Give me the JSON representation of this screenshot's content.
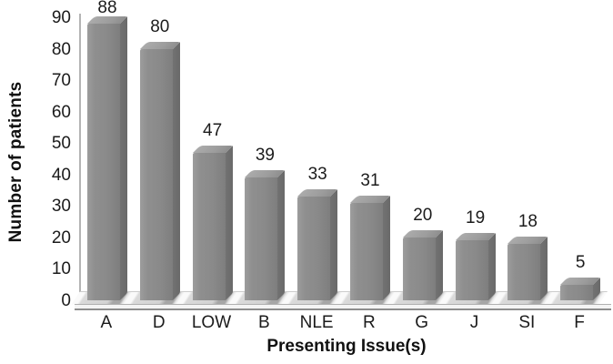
{
  "chart_data": {
    "type": "bar",
    "title": "",
    "xlabel": "Presenting Issue(s)",
    "ylabel": "Number of patients",
    "categories": [
      "A",
      "D",
      "LOW",
      "B",
      "NLE",
      "R",
      "G",
      "J",
      "SI",
      "F"
    ],
    "values": [
      88,
      80,
      47,
      39,
      33,
      31,
      20,
      19,
      18,
      5
    ],
    "data_labels_shown": true,
    "ylim": [
      0,
      90
    ],
    "yticks": [
      0,
      10,
      20,
      30,
      40,
      50,
      60,
      70,
      80,
      90
    ],
    "grid": false,
    "legend": null,
    "effect": "3d-beveled-bars",
    "colors": {
      "bar_face": "#8a8a8a",
      "bar_top": "#a5a5a5",
      "bar_side": "#6d6d6d",
      "floor": "#d2d2d2",
      "floor_shadow": "#a6a6a6",
      "axis_line": "#b4b4b4",
      "text": "#1b1b1b"
    }
  }
}
